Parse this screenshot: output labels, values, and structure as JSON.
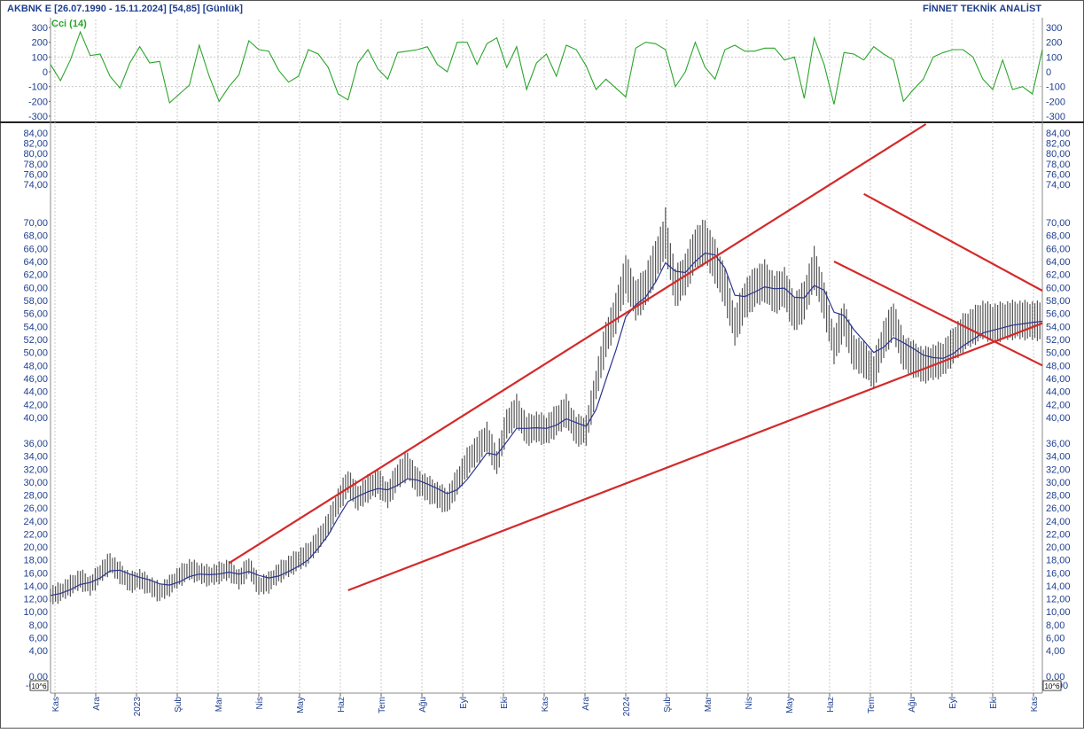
{
  "header": {
    "symbol_info": "AKBNK E  [26.07.1990 - 15.11.2024]  [54,85]  [Günlük]",
    "brand": "FİNNET TEKNİK ANALİST"
  },
  "badges": {
    "left": "10^6",
    "right": "10^6"
  },
  "chart_data": [
    {
      "type": "line",
      "title": "Cci (14)",
      "color": "#2aa52a",
      "ylim": [
        -300,
        300
      ],
      "yticks": [
        "300",
        "200",
        "100",
        "0",
        "-100",
        "-200",
        "-300"
      ],
      "reference_lines": [
        100,
        -100
      ],
      "x": [
        0,
        5,
        10,
        15,
        20,
        25,
        30,
        35,
        40,
        45,
        50,
        55,
        60,
        65,
        70,
        75,
        80,
        85,
        90,
        95,
        100,
        105,
        110,
        115,
        120,
        125,
        130,
        135,
        140,
        145,
        150,
        155,
        160,
        165,
        170,
        175,
        180,
        185,
        190,
        195,
        200,
        205,
        210,
        215,
        220,
        225,
        230,
        235,
        240,
        245,
        250,
        255,
        260,
        265,
        270,
        275,
        280,
        285,
        290,
        295,
        300,
        305,
        310,
        315,
        320,
        325,
        330,
        335,
        340,
        345,
        350,
        355,
        360,
        365,
        370,
        375,
        380,
        385,
        390,
        395,
        400,
        405,
        410,
        415,
        420,
        425,
        430,
        435,
        440,
        445,
        450,
        455,
        460,
        465,
        470,
        475,
        480,
        485,
        490,
        495,
        500
      ],
      "values": [
        50,
        -60,
        80,
        270,
        110,
        120,
        -30,
        -110,
        60,
        170,
        60,
        70,
        -210,
        -150,
        -90,
        180,
        -30,
        -200,
        -100,
        -20,
        210,
        150,
        140,
        10,
        -70,
        -30,
        150,
        120,
        30,
        -150,
        -190,
        60,
        150,
        20,
        -50,
        130,
        140,
        150,
        170,
        50,
        0,
        200,
        200,
        50,
        190,
        230,
        30,
        170,
        -120,
        60,
        120,
        -30,
        180,
        150,
        40,
        -120,
        -50,
        -110,
        -170,
        160,
        200,
        190,
        150,
        -100,
        0,
        200,
        30,
        -50,
        150,
        180,
        140,
        140,
        160,
        160,
        80,
        100,
        -180,
        230,
        50,
        -220,
        130,
        120,
        80,
        170,
        120,
        80,
        -200,
        -120,
        -50,
        100,
        130,
        150,
        150,
        100,
        -50,
        -120,
        80,
        -120,
        -100,
        -150,
        150
      ]
    },
    {
      "type": "candlestick",
      "title": "",
      "yscale": "custom-piecewise",
      "ylim": [
        0,
        86
      ],
      "yticks": [
        "84,00",
        "82,00",
        "80,00",
        "78,00",
        "76,00",
        "74,00",
        "70,00",
        "68,00",
        "66,00",
        "64,00",
        "62,00",
        "60,00",
        "58,00",
        "56,00",
        "54,00",
        "52,00",
        "50,00",
        "48,00",
        "46,00",
        "44,00",
        "42,00",
        "40,00",
        "36,00",
        "34,00",
        "32,00",
        "30,00",
        "28,00",
        "26,00",
        "24,00",
        "22,00",
        "20,00",
        "18,00",
        "16,00",
        "14,00",
        "12,00",
        "10,00",
        "8,00",
        "6,00",
        "4,00",
        "0,00",
        "-0,00"
      ],
      "xticks": [
        "Kas",
        "Ara",
        "2023",
        "Şub",
        "Mar",
        "Nis",
        "May",
        "Haz",
        "Tem",
        "Ağu",
        "Eyl",
        "Eki",
        "Kas",
        "Ara",
        "2024",
        "Şub",
        "Mar",
        "Nis",
        "May",
        "Haz",
        "Tem",
        "Ağu",
        "Eyl",
        "Eki",
        "Kas"
      ],
      "x": [
        0,
        5,
        10,
        15,
        20,
        25,
        30,
        35,
        40,
        45,
        50,
        55,
        60,
        65,
        70,
        75,
        80,
        85,
        90,
        95,
        100,
        105,
        110,
        115,
        120,
        125,
        130,
        135,
        140,
        145,
        150,
        155,
        160,
        165,
        170,
        175,
        180,
        185,
        190,
        195,
        200,
        205,
        210,
        215,
        220,
        225,
        230,
        235,
        240,
        245,
        250,
        255,
        260,
        265,
        270,
        275,
        280,
        285,
        290,
        295,
        300,
        305,
        310,
        315,
        320,
        325,
        330,
        335,
        340,
        345,
        350,
        355,
        360,
        365,
        370,
        375,
        380,
        385,
        390,
        395,
        400,
        405,
        410,
        415,
        420,
        425,
        430,
        435,
        440,
        445,
        450,
        455,
        460,
        465,
        470,
        475,
        480,
        485,
        490,
        495,
        500
      ],
      "price": [
        12.5,
        13,
        14,
        15,
        14,
        16,
        17.5,
        16,
        14.5,
        15,
        14,
        13,
        14,
        15.5,
        16.5,
        16,
        15.5,
        16,
        16.5,
        15,
        17,
        14,
        14.5,
        16,
        17,
        18,
        19,
        21,
        23.5,
        27,
        30,
        27.5,
        29,
        30,
        28,
        31,
        32.5,
        30,
        29,
        28,
        27,
        30,
        33,
        35,
        37,
        33,
        39,
        41,
        38,
        38.5,
        38,
        39.5,
        41,
        38,
        38,
        45,
        52,
        56,
        62,
        58,
        60,
        64,
        68,
        60,
        62,
        66,
        67,
        64,
        60,
        54,
        58,
        60,
        61,
        59,
        60,
        56,
        58,
        63,
        58,
        51,
        55,
        50,
        49,
        47,
        52,
        55,
        50,
        49,
        48,
        48.5,
        49,
        51,
        53,
        54,
        55,
        54.5,
        54.8,
        55,
        55,
        54.9,
        54.85
      ],
      "moving_average": [
        12.5,
        12.8,
        13.4,
        14.2,
        14.5,
        15.2,
        16.3,
        16.4,
        15.8,
        15.3,
        14.9,
        14.3,
        14.1,
        14.6,
        15.4,
        15.8,
        15.7,
        15.8,
        16.1,
        15.8,
        16.2,
        15.6,
        15.2,
        15.5,
        16.2,
        17,
        18,
        19.8,
        21.8,
        24.5,
        27,
        27.8,
        28.5,
        29,
        28.8,
        29.5,
        30.5,
        30.3,
        29.7,
        29,
        28.2,
        28.8,
        30.4,
        32.4,
        34.5,
        34.2,
        36.2,
        38.3,
        38.3,
        38.4,
        38.3,
        38.8,
        39.8,
        39.2,
        38.6,
        41.2,
        45.8,
        50.3,
        55.5,
        57.3,
        58.5,
        60.8,
        63.8,
        62.5,
        62.3,
        64,
        65.3,
        65,
        63,
        58.8,
        58.6,
        59.3,
        60.1,
        59.8,
        59.9,
        58.5,
        58.4,
        60.3,
        59.6,
        56.2,
        55.7,
        53.5,
        51.8,
        50,
        50.8,
        52.3,
        51.5,
        50.6,
        49.6,
        49.2,
        49.1,
        49.8,
        51,
        52,
        53,
        53.4,
        53.8,
        54.2,
        54.4,
        54.6,
        54.8
      ],
      "trendlines": [
        {
          "from": [
            90,
            17.5
          ],
          "to": [
            500,
            100
          ]
        },
        {
          "from": [
            150,
            13.3
          ],
          "to": [
            500,
            54.5
          ]
        },
        {
          "from": [
            410,
            73
          ],
          "to": [
            500,
            59.5
          ]
        },
        {
          "from": [
            395,
            64
          ],
          "to": [
            500,
            48
          ]
        }
      ]
    }
  ]
}
